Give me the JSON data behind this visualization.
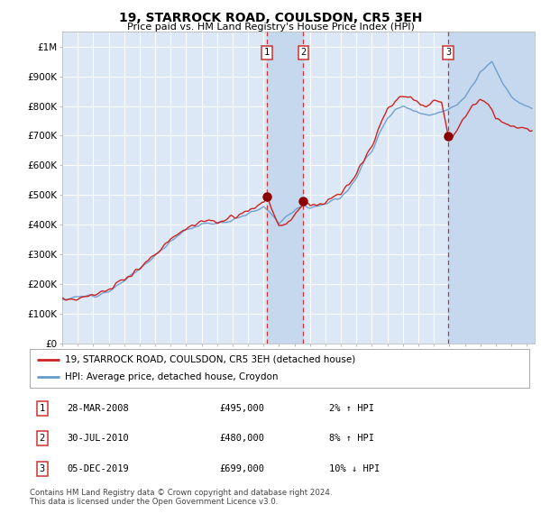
{
  "title": "19, STARROCK ROAD, COULSDON, CR5 3EH",
  "subtitle": "Price paid vs. HM Land Registry's House Price Index (HPI)",
  "background_color": "#ffffff",
  "plot_bg_color": "#dce8f5",
  "grid_color": "#ffffff",
  "sale_dates_float": [
    2008.23,
    2010.575,
    2019.92
  ],
  "sale_prices": [
    495000,
    480000,
    699000
  ],
  "sale_labels": [
    "1",
    "2",
    "3"
  ],
  "legend_line1": "19, STARROCK ROAD, COULSDON, CR5 3EH (detached house)",
  "legend_line2": "HPI: Average price, detached house, Croydon",
  "table_rows": [
    [
      "1",
      "28-MAR-2008",
      "£495,000",
      "2% ↑ HPI"
    ],
    [
      "2",
      "30-JUL-2010",
      "£480,000",
      "8% ↑ HPI"
    ],
    [
      "3",
      "05-DEC-2019",
      "£699,000",
      "10% ↓ HPI"
    ]
  ],
  "footer": "Contains HM Land Registry data © Crown copyright and database right 2024.\nThis data is licensed under the Open Government Licence v3.0.",
  "hpi_color": "#6699cc",
  "price_color": "#cc2222",
  "sale_marker_color": "#8b0000",
  "dashed_line_color": "#cc3333",
  "shade_color": "#c5d8ed",
  "ylim": [
    0,
    1050000
  ],
  "yticks": [
    0,
    100000,
    200000,
    300000,
    400000,
    500000,
    600000,
    700000,
    800000,
    900000,
    1000000
  ],
  "ytick_labels": [
    "£0",
    "£100K",
    "£200K",
    "£300K",
    "£400K",
    "£500K",
    "£600K",
    "£700K",
    "£800K",
    "£900K",
    "£1M"
  ],
  "xlim_start": 1995.0,
  "xlim_end": 2025.5,
  "title_fontsize": 10,
  "subtitle_fontsize": 8
}
